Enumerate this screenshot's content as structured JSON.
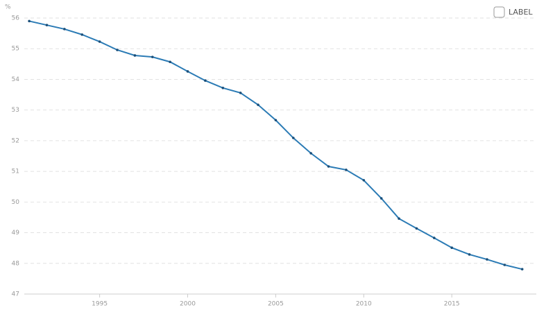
{
  "chart_data": {
    "type": "line",
    "y_unit_label": "%",
    "x": [
      1991,
      1992,
      1993,
      1994,
      1995,
      1996,
      1997,
      1998,
      1999,
      2000,
      2001,
      2002,
      2003,
      2004,
      2005,
      2006,
      2007,
      2008,
      2009,
      2010,
      2011,
      2012,
      2013,
      2014,
      2015,
      2016,
      2017,
      2018,
      2019
    ],
    "series": [
      {
        "name": "LABEL",
        "color": "#2b7bb5",
        "values": [
          55.9,
          55.77,
          55.64,
          55.46,
          55.23,
          54.96,
          54.78,
          54.73,
          54.57,
          54.26,
          53.96,
          53.72,
          53.56,
          53.17,
          52.67,
          52.09,
          51.59,
          51.16,
          51.05,
          50.71,
          50.12,
          49.46,
          49.14,
          48.83,
          48.51,
          48.29,
          48.13,
          47.95,
          47.81
        ]
      }
    ],
    "xlim": [
      1990.72,
      2019.8
    ],
    "xticks": [
      1995,
      2000,
      2005,
      2010,
      2015
    ],
    "ylim": [
      47,
      56
    ],
    "yticks": [
      47,
      48,
      49,
      50,
      51,
      52,
      53,
      54,
      55,
      56
    ],
    "grid": true,
    "legend_position": "top-right"
  }
}
